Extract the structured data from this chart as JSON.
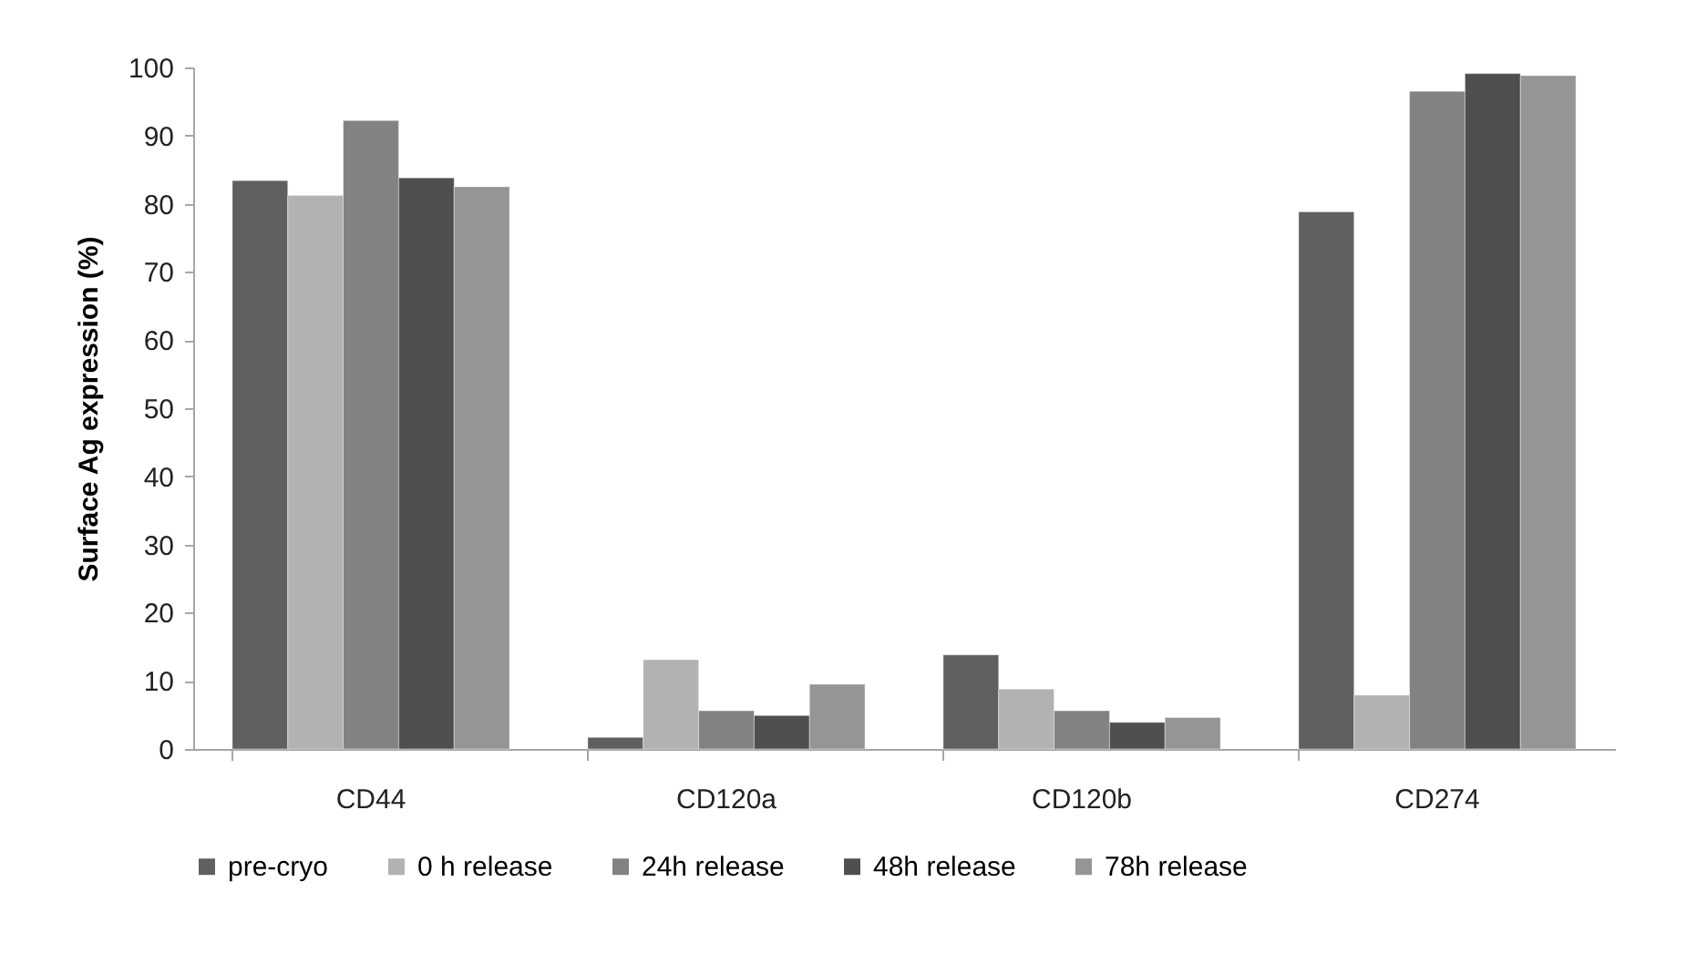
{
  "chart_data": {
    "type": "bar",
    "ylabel": "Surface Ag expression (%)",
    "categories": [
      "CD44",
      "CD120a",
      "CD120b",
      "CD274"
    ],
    "series": [
      {
        "name": "pre-cryo",
        "color": "#606060",
        "values": [
          83.4,
          1.7,
          13.8,
          78.8
        ]
      },
      {
        "name": "0 h release",
        "color": "#b2b2b2",
        "values": [
          81.2,
          13.1,
          8.8,
          7.9
        ]
      },
      {
        "name": "24h release",
        "color": "#828282",
        "values": [
          92.2,
          5.6,
          5.6,
          96.5
        ]
      },
      {
        "name": "48h release",
        "color": "#4f4f4f",
        "values": [
          83.8,
          4.9,
          3.9,
          99.1
        ]
      },
      {
        "name": "78h release",
        "color": "#959595",
        "values": [
          82.5,
          9.5,
          4.6,
          98.8
        ]
      }
    ],
    "ylim": [
      0,
      100
    ],
    "yticks": [
      0,
      10,
      20,
      30,
      40,
      50,
      60,
      70,
      80,
      90,
      100
    ],
    "grid": false,
    "legend": "bottom"
  }
}
